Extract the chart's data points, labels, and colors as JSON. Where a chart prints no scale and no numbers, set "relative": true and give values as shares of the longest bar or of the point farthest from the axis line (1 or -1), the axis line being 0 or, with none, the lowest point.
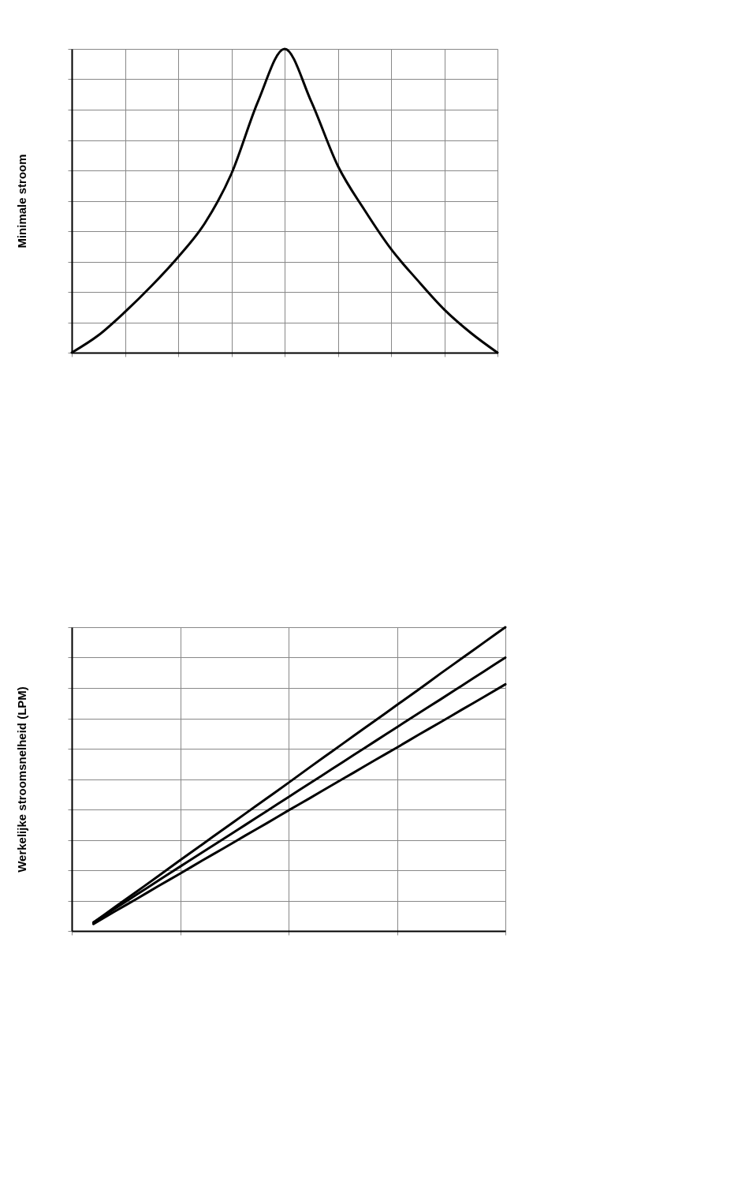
{
  "chart_data": [
    {
      "type": "line",
      "ylabel": "Minimale stroom",
      "relative": true,
      "grid": true,
      "tick_labels": false,
      "legend": false,
      "categories": [
        null,
        null,
        null,
        null,
        null,
        null,
        null,
        null,
        null,
        null,
        null,
        null,
        null,
        null,
        null,
        null,
        null
      ],
      "series": [
        {
          "color": "#000000",
          "values": [
            0,
            0.057,
            0.134,
            0.22,
            0.315,
            0.426,
            0.589,
            0.827,
            1,
            0.827,
            0.615,
            0.47,
            0.341,
            0.238,
            0.142,
            0.065,
            0
          ]
        }
      ]
    },
    {
      "type": "line",
      "ylabel": "Werkelijke stroomsnelheid (LPM)",
      "relative": true,
      "grid": true,
      "tick_labels": false,
      "legend": false,
      "categories": [
        null,
        null,
        null,
        null,
        null,
        null,
        null,
        null,
        null,
        null,
        null,
        null,
        null,
        null,
        null,
        null,
        null,
        null,
        null,
        null,
        null
      ],
      "series": [
        {
          "color": "#000000",
          "values": [
            null,
            0.028,
            0.079,
            0.13,
            0.181,
            0.233,
            0.284,
            0.335,
            0.386,
            0.437,
            0.488,
            0.54,
            0.591,
            0.642,
            0.693,
            0.744,
            0.795,
            0.847,
            0.898,
            0.949,
            1.0
          ]
        },
        {
          "color": "#000000",
          "values": [
            null,
            0.028,
            0.074,
            0.12,
            0.166,
            0.212,
            0.258,
            0.303,
            0.349,
            0.395,
            0.441,
            0.487,
            0.533,
            0.579,
            0.625,
            0.671,
            0.717,
            0.762,
            0.808,
            0.854,
            0.9
          ]
        },
        {
          "color": "#000000",
          "values": [
            null,
            0.023,
            0.065,
            0.106,
            0.148,
            0.189,
            0.231,
            0.272,
            0.314,
            0.355,
            0.397,
            0.438,
            0.48,
            0.521,
            0.563,
            0.604,
            0.646,
            0.687,
            0.729,
            0.77,
            0.812
          ]
        }
      ]
    }
  ]
}
